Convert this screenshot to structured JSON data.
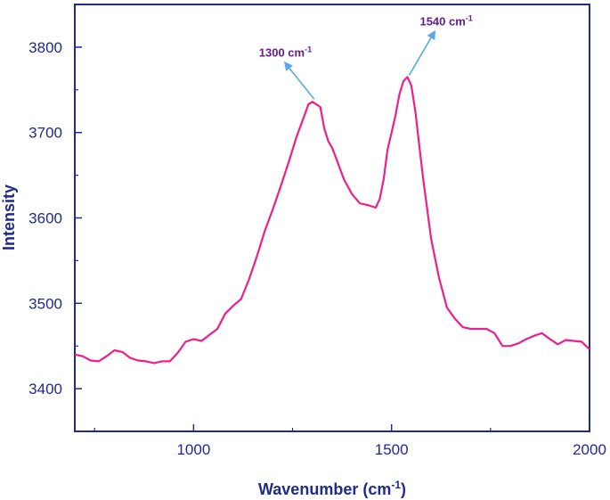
{
  "chart_data": {
    "type": "line",
    "title": "",
    "xlabel": "Wavenumber (cm",
    "xlabel_sup": "-1",
    "xlabel_close": ")",
    "ylabel": "Intensity",
    "xlim": [
      700,
      2000
    ],
    "ylim": [
      3350,
      3850
    ],
    "xticks": [
      1000,
      1500,
      2000
    ],
    "yticks": [
      3400,
      3500,
      3600,
      3700,
      3800
    ],
    "grid": false,
    "legend": "none",
    "line_color": "#ee1e8c",
    "axis_color": "#1f2a8a",
    "annotation_color": "#6a1b8a",
    "arrow_color": "#5aa9e6",
    "series": [
      {
        "x": [
          700,
          720,
          740,
          760,
          780,
          800,
          820,
          840,
          860,
          880,
          900,
          920,
          940,
          960,
          980,
          1000,
          1020,
          1040,
          1060,
          1080,
          1100,
          1120,
          1140,
          1160,
          1180,
          1200,
          1220,
          1240,
          1260,
          1280,
          1290,
          1300,
          1310,
          1320,
          1330,
          1340,
          1350,
          1360,
          1380,
          1400,
          1420,
          1440,
          1460,
          1470,
          1480,
          1490,
          1500,
          1510,
          1520,
          1530,
          1540,
          1550,
          1560,
          1570,
          1580,
          1600,
          1620,
          1640,
          1660,
          1680,
          1700,
          1720,
          1740,
          1760,
          1780,
          1800,
          1820,
          1840,
          1860,
          1880,
          1900,
          1920,
          1940,
          1960,
          1980,
          2000
        ],
        "y": [
          3440,
          3438,
          3433,
          3432,
          3438,
          3445,
          3443,
          3436,
          3433,
          3432,
          3430,
          3432,
          3432,
          3442,
          3455,
          3458,
          3456,
          3463,
          3470,
          3488,
          3497,
          3505,
          3528,
          3555,
          3585,
          3610,
          3637,
          3665,
          3695,
          3720,
          3733,
          3736,
          3733,
          3730,
          3705,
          3690,
          3682,
          3670,
          3645,
          3628,
          3617,
          3615,
          3612,
          3622,
          3645,
          3680,
          3700,
          3720,
          3745,
          3760,
          3765,
          3755,
          3725,
          3685,
          3645,
          3575,
          3530,
          3495,
          3482,
          3472,
          3470,
          3470,
          3470,
          3465,
          3450,
          3450,
          3453,
          3458,
          3462,
          3465,
          3458,
          3452,
          3457,
          3456,
          3455,
          3446
        ]
      }
    ],
    "annotations": [
      {
        "label": "1300 cm",
        "sup": "-1",
        "x": 1300,
        "y": 3737
      },
      {
        "label": "1540 cm",
        "sup": "-1",
        "x": 1540,
        "y": 3765
      }
    ]
  }
}
